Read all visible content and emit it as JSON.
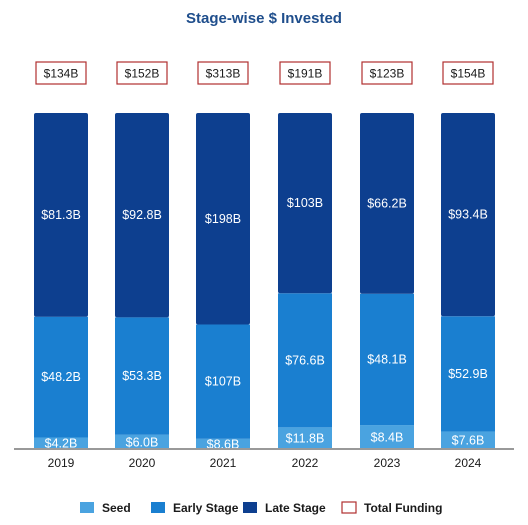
{
  "chart_data": {
    "type": "bar",
    "stacked": true,
    "title": "Stage-wise $ Invested",
    "categories": [
      "2019",
      "2020",
      "2021",
      "2022",
      "2023",
      "2024"
    ],
    "series": [
      {
        "name": "Seed",
        "color": "#4aa3e0",
        "values": [
          4.2,
          6.0,
          8.6,
          11.8,
          8.4,
          7.6
        ],
        "labels": [
          "$4.2B",
          "$6.0B",
          "$8.6B",
          "$11.8B",
          "$8.4B",
          "$7.6B"
        ]
      },
      {
        "name": "Early Stage",
        "color": "#1a7fd0",
        "values": [
          48.2,
          53.3,
          107,
          76.6,
          48.1,
          52.9
        ],
        "labels": [
          "$48.2B",
          "$53.3B",
          "$107B",
          "$76.6B",
          "$48.1B",
          "$52.9B"
        ]
      },
      {
        "name": "Late Stage",
        "color": "#0d3f8f",
        "values": [
          81.3,
          92.8,
          198,
          103,
          66.2,
          93.4
        ],
        "labels": [
          "$81.3B",
          "$92.8B",
          "$198B",
          "$103B",
          "$66.2B",
          "$93.4B"
        ]
      }
    ],
    "totals": {
      "name": "Total Funding",
      "color": "#b03030",
      "labels": [
        "$134B",
        "$152B",
        "$313B",
        "$191B",
        "$123B",
        "$154B"
      ]
    },
    "normalized": true,
    "legend_position": "bottom",
    "grid": false
  }
}
